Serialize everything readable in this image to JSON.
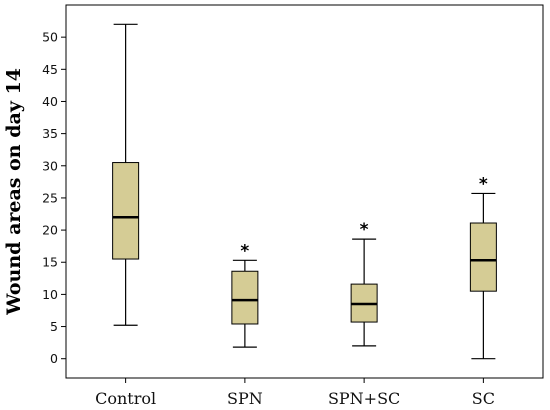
{
  "chart_data": {
    "type": "boxplot",
    "title": "",
    "xlabel": "",
    "ylabel": "Wound areas on day 14",
    "ylim": [
      -3,
      55
    ],
    "yticks": [
      0,
      5,
      10,
      15,
      20,
      25,
      30,
      35,
      40,
      45,
      50
    ],
    "box_color": "#d5cc95",
    "grid": false,
    "categories": [
      "Control",
      "SPN",
      "SPN+SC",
      "SC"
    ],
    "boxes": [
      {
        "min": 5.2,
        "q1": 15.5,
        "median": 22.0,
        "q3": 30.5,
        "max": 52.0,
        "annotation": ""
      },
      {
        "min": 1.8,
        "q1": 5.4,
        "median": 9.1,
        "q3": 13.6,
        "max": 15.3,
        "annotation": "*"
      },
      {
        "min": 2.0,
        "q1": 5.7,
        "median": 8.5,
        "q3": 11.6,
        "max": 18.6,
        "annotation": "*"
      },
      {
        "min": 0.0,
        "q1": 10.5,
        "median": 15.3,
        "q3": 21.1,
        "max": 25.7,
        "annotation": "*"
      }
    ]
  }
}
